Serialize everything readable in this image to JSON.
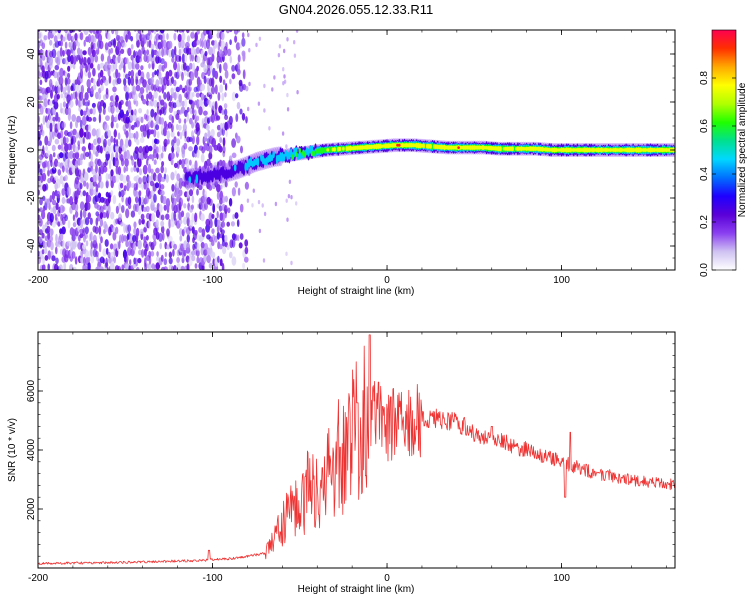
{
  "title": "GN04.2026.055.12.33.R11",
  "chart_data": [
    {
      "type": "heatmap",
      "xlabel": "Height of straight line (km)",
      "ylabel": "Frequency (Hz)",
      "xlim": [
        -200,
        165
      ],
      "ylim": [
        -50,
        50
      ],
      "xticks": [
        -200,
        -100,
        0,
        100
      ],
      "yticks": [
        -40,
        -20,
        0,
        20,
        40
      ],
      "colorbar": {
        "label": "Normalized spectral amplitude",
        "range": [
          0,
          1
        ],
        "ticks": [
          "0.0",
          "0.2",
          "0.4",
          "0.6",
          "0.8"
        ],
        "colors": [
          "#ffffff",
          "#cfc2f2",
          "#8a3ff0",
          "#5a00d8",
          "#1e00ff",
          "#0070ff",
          "#00d8ff",
          "#00e090",
          "#20ff00",
          "#b0ff00",
          "#ffff00",
          "#ffaa00",
          "#ff3000",
          "#ff0050"
        ]
      },
      "noise_region": {
        "x_from": -200,
        "x_to": -80
      },
      "ridge": [
        {
          "x": -115,
          "y": -12,
          "a": 0.45
        },
        {
          "x": -105,
          "y": -11,
          "a": 0.35
        },
        {
          "x": -95,
          "y": -10,
          "a": 0.35
        },
        {
          "x": -85,
          "y": -8,
          "a": 0.4
        },
        {
          "x": -75,
          "y": -5,
          "a": 0.5
        },
        {
          "x": -65,
          "y": -3,
          "a": 0.5
        },
        {
          "x": -55,
          "y": -2,
          "a": 0.55
        },
        {
          "x": -45,
          "y": -1,
          "a": 0.6
        },
        {
          "x": -35,
          "y": 0,
          "a": 0.7
        },
        {
          "x": -25,
          "y": 0.5,
          "a": 0.75
        },
        {
          "x": -15,
          "y": 1,
          "a": 0.8
        },
        {
          "x": -5,
          "y": 1.5,
          "a": 0.85
        },
        {
          "x": 5,
          "y": 2,
          "a": 0.9
        },
        {
          "x": 15,
          "y": 2,
          "a": 0.85
        },
        {
          "x": 25,
          "y": 1.5,
          "a": 0.8
        },
        {
          "x": 35,
          "y": 1,
          "a": 0.85
        },
        {
          "x": 45,
          "y": 1,
          "a": 0.9
        },
        {
          "x": 55,
          "y": 1,
          "a": 0.85
        },
        {
          "x": 65,
          "y": 0.5,
          "a": 0.8
        },
        {
          "x": 75,
          "y": 0.5,
          "a": 0.8
        },
        {
          "x": 85,
          "y": 0.5,
          "a": 0.85
        },
        {
          "x": 95,
          "y": 0,
          "a": 0.8
        },
        {
          "x": 105,
          "y": 0,
          "a": 0.85
        },
        {
          "x": 115,
          "y": 0,
          "a": 0.85
        },
        {
          "x": 125,
          "y": 0,
          "a": 0.85
        },
        {
          "x": 135,
          "y": 0,
          "a": 0.85
        },
        {
          "x": 145,
          "y": 0,
          "a": 0.85
        },
        {
          "x": 155,
          "y": 0,
          "a": 0.85
        },
        {
          "x": 165,
          "y": 0,
          "a": 0.85
        }
      ]
    },
    {
      "type": "line",
      "xlabel": "Height of straight line (km)",
      "ylabel": "SNR (10 * v/v)",
      "xlim": [
        -200,
        165
      ],
      "ylim": [
        0,
        8000
      ],
      "xticks": [
        -200,
        -100,
        0,
        100
      ],
      "yticks": [
        2000,
        4000,
        6000
      ],
      "color": "#ee3333",
      "series": [
        {
          "x": [
            -200,
            -190,
            -180,
            -170,
            -160,
            -150,
            -140,
            -130,
            -120,
            -110,
            -100,
            -95,
            -90,
            -85,
            -80,
            -75,
            -70,
            -65,
            -60,
            -55,
            -50,
            -45,
            -40,
            -35,
            -30,
            -25,
            -20,
            -15,
            -10,
            -5,
            0,
            5,
            10,
            15,
            20,
            25,
            30,
            35,
            40,
            45,
            50,
            55,
            60,
            65,
            70,
            75,
            80,
            85,
            90,
            95,
            100,
            105,
            110,
            115,
            120,
            125,
            130,
            135,
            140,
            145,
            150,
            155,
            160,
            165
          ],
          "y": [
            150,
            160,
            170,
            170,
            180,
            190,
            200,
            220,
            240,
            250,
            280,
            300,
            320,
            350,
            400,
            450,
            500,
            900,
            1500,
            2000,
            2300,
            2600,
            2700,
            3000,
            3500,
            4000,
            4500,
            5000,
            5300,
            5100,
            4800,
            4900,
            5000,
            5000,
            5000,
            5100,
            5100,
            5000,
            4900,
            4800,
            4600,
            4500,
            4400,
            4300,
            4200,
            4100,
            4000,
            3900,
            3800,
            3700,
            3600,
            3500,
            3400,
            3300,
            3200,
            3150,
            3100,
            3050,
            3000,
            2950,
            2900,
            2900,
            2850,
            2850
          ]
        }
      ],
      "spikes": [
        {
          "x": -102,
          "y": 600
        },
        {
          "x": -47,
          "y": 3100
        },
        {
          "x": -37,
          "y": 3400
        },
        {
          "x": -27,
          "y": 4100
        },
        {
          "x": -17,
          "y": 5600
        },
        {
          "x": -10,
          "y": 7900
        },
        {
          "x": -5,
          "y": 6300
        },
        {
          "x": 2,
          "y": 5800
        },
        {
          "x": 60,
          "y": 4800
        },
        {
          "x": 105,
          "y": 4600
        },
        {
          "x": 102,
          "y": 2400
        }
      ]
    }
  ]
}
